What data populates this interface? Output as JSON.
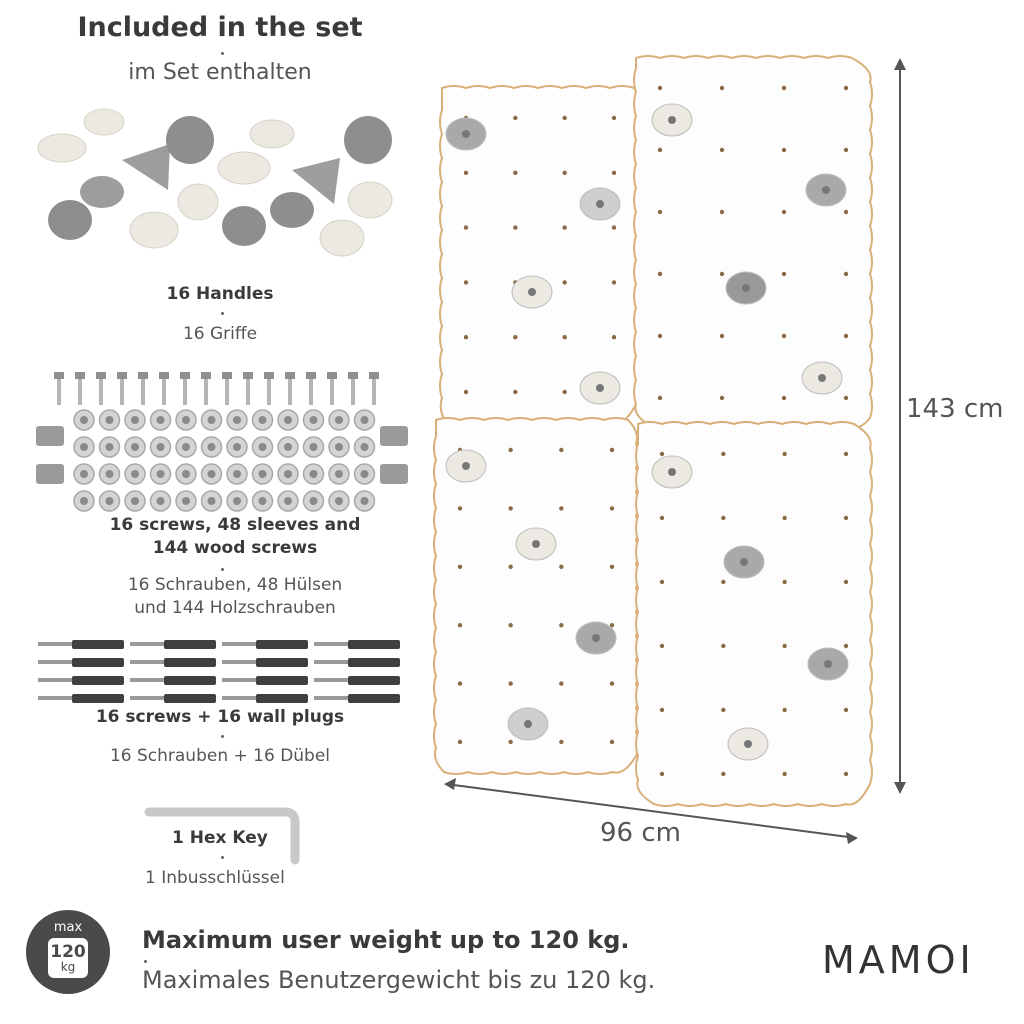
{
  "header": {
    "title_en": "Included in the set",
    "title_de": "im Set enthalten"
  },
  "items": [
    {
      "en": "16 Handles",
      "de": "16 Griffe"
    },
    {
      "en_line1": "16 screws, 48 sleeves and",
      "en_line2": "144 wood screws",
      "de_line1": "16 Schrauben, 48 Hülsen",
      "de_line2": "und 144 Holzschrauben"
    },
    {
      "en": "16 screws + 16 wall plugs",
      "de": "16 Schrauben + 16 Dübel"
    },
    {
      "en": "1 Hex Key",
      "de": "1 Inbusschlüssel"
    }
  ],
  "weight_badge": {
    "top": "max",
    "value": "120",
    "unit": "kg"
  },
  "weight": {
    "en": "Maximum user weight up to 120 kg.",
    "de": "Maximales Benutzergewicht bis zu 120 kg."
  },
  "brand": "MAMOI",
  "dimensions": {
    "height": "143 cm",
    "width": "96 cm"
  },
  "colors": {
    "hold_light": "#ece9e2",
    "hold_grey": "#a9a9a9",
    "panel_edge": "#d9b07a",
    "text": "#3a3a3a"
  }
}
